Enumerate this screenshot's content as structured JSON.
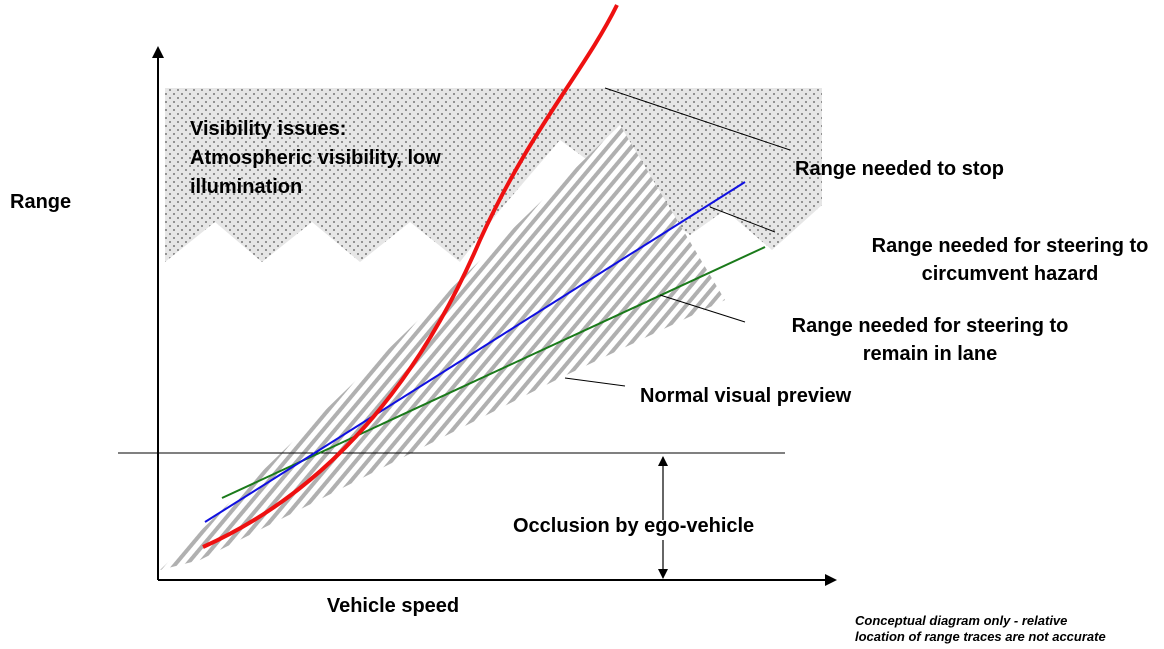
{
  "axes": {
    "y_label": "Range",
    "x_label": "Vehicle speed"
  },
  "regions": {
    "visibility": [
      "Visibility issues:",
      "Atmospheric visibility, low",
      "illumination"
    ],
    "normal_preview": "Normal visual preview",
    "occlusion": "Occlusion by ego-vehicle"
  },
  "traces": {
    "stop": "Range needed to stop",
    "circumvent": [
      "Range needed for steering to",
      "circumvent hazard"
    ],
    "lane": [
      "Range needed for steering to",
      "remain in lane"
    ]
  },
  "note": [
    "Conceptual diagram only - relative",
    "location of range traces are not accurate"
  ]
}
